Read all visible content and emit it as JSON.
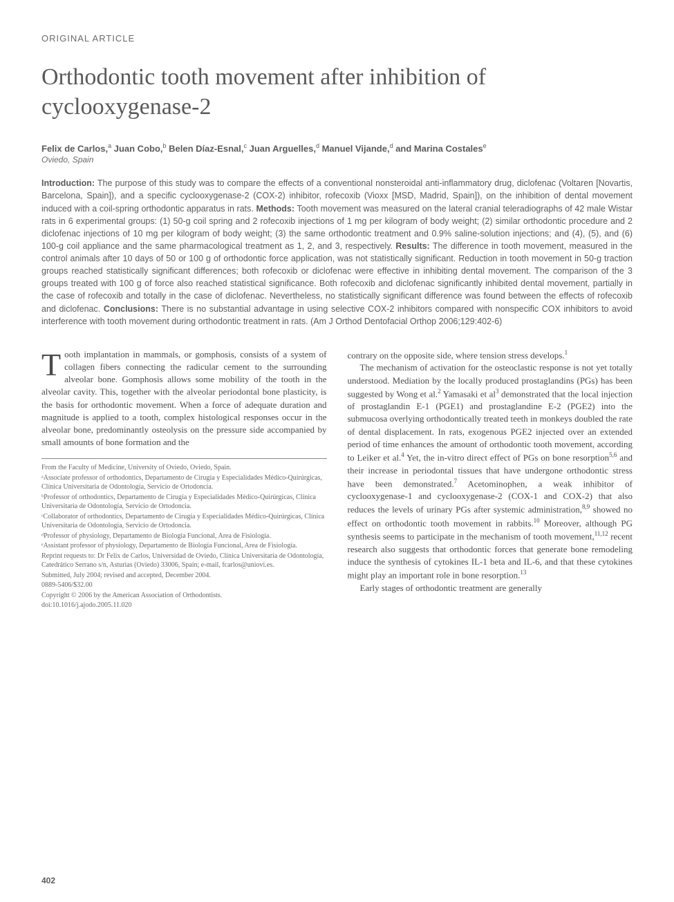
{
  "section_label": "ORIGINAL ARTICLE",
  "title": "Orthodontic tooth movement after inhibition of cyclooxygenase-2",
  "authors_html": "Felix de Carlos,<sup>a</sup> Juan Cobo,<sup>b</sup> Belen Díaz-Esnal,<sup>c</sup> Juan Arguelles,<sup>d</sup> Manuel Vijande,<sup>d</sup> and Marina Costales<sup>e</sup>",
  "location": "Oviedo, Spain",
  "abstract": {
    "intro_label": "Introduction:",
    "intro": " The purpose of this study was to compare the effects of a conventional nonsteroidal anti-inflammatory drug, diclofenac (Voltaren [Novartis, Barcelona, Spain]), and a specific cyclooxygenase-2 (COX-2) inhibitor, rofecoxib (Vioxx [MSD, Madrid, Spain]), on the inhibition of dental movement induced with a coil-spring orthodontic apparatus in rats. ",
    "methods_label": "Methods:",
    "methods": " Tooth movement was measured on the lateral cranial teleradiographs of 42 male Wistar rats in 6 experimental groups: (1) 50-g coil spring and 2 rofecoxib injections of 1 mg per kilogram of body weight; (2) similar orthodontic procedure and 2 diclofenac injections of 10 mg per kilogram of body weight; (3) the same orthodontic treatment and 0.9% saline-solution injections; and (4), (5), and (6) 100-g coil appliance and the same pharmacological treatment as 1, 2, and 3, respectively. ",
    "results_label": "Results:",
    "results": " The difference in tooth movement, measured in the control animals after 10 days of 50 or 100 g of orthodontic force application, was not statistically significant. Reduction in tooth movement in 50-g traction groups reached statistically significant differences; both rofecoxib or diclofenac were effective in inhibiting dental movement. The comparison of the 3 groups treated with 100 g of force also reached statistical significance. Both rofecoxib and diclofenac significantly inhibited dental movement, partially in the case of rofecoxib and totally in the case of diclofenac. Nevertheless, no statistically significant difference was found between the effects of rofecoxib and diclofenac. ",
    "conclusions_label": "Conclusions:",
    "conclusions": " There is no substantial advantage in using selective COX-2 inhibitors compared with nonspecific COX inhibitors to avoid interference with tooth movement during orthodontic treatment in rats. (Am J Orthod Dentofacial Orthop 2006;129:402-6)"
  },
  "body": {
    "col1_p1": "ooth implantation in mammals, or gomphosis, consists of a system of collagen fibers connecting the radicular cement to the surrounding alveolar bone. Gomphosis allows some mobility of the tooth in the alveolar cavity. This, together with the alveolar periodontal bone plasticity, is the basis for orthodontic movement. When a force of adequate duration and magnitude is applied to a tooth, complex histological responses occur in the alveolar bone, predominantly osteolysis on the pressure side accompanied by small amounts of bone formation and the",
    "col2_p1": "contrary on the opposite side, where tension stress develops.",
    "col2_p2_a": "The mechanism of activation for the osteoclastic response is not yet totally understood. Mediation by the locally produced prostaglandins (PGs) has been suggested by Wong et al.",
    "col2_p2_b": " Yamasaki et al",
    "col2_p2_c": " demonstrated that the local injection of prostaglandin E-1 (PGE1) and prostaglandine E-2 (PGE2) into the submucosa overlying orthodontically treated teeth in monkeys doubled the rate of dental displacement. In rats, exogenous PGE2 injected over an extended period of time enhances the amount of orthodontic tooth movement, according to Leiker et al.",
    "col2_p2_d": " Yet, the in-vitro direct effect of PGs on bone resorption",
    "col2_p2_e": " and their increase in periodontal tissues that have undergone orthodontic stress have been demonstrated.",
    "col2_p2_f": " Acetominophen, a weak inhibitor of cyclooxygenase-1 and cyclooxygenase-2 (COX-1 and COX-2) that also reduces the levels of urinary PGs after systemic administration,",
    "col2_p2_g": " showed no effect on orthodontic tooth movement in rabbits.",
    "col2_p2_h": " Moreover, although PG synthesis seems to participate in the mechanism of tooth movement,",
    "col2_p2_i": " recent research also suggests that orthodontic forces that generate bone remodeling induce the synthesis of cytokines IL-1 beta and IL-6, and that these cytokines might play an important role in bone resorption.",
    "col2_p3": "Early stages of orthodontic treatment are generally"
  },
  "refs": {
    "r1": "1",
    "r2": "2",
    "r3": "3",
    "r4": "4",
    "r56": "5,6",
    "r7": "7",
    "r89": "8,9",
    "r10": "10",
    "r1112": "11,12",
    "r13": "13"
  },
  "footnotes": {
    "ln1": "From the Faculty of Medicine, University of Oviedo, Oviedo, Spain.",
    "ln2": "ᵃAssociate professor of orthodontics, Departamento de Cirugía y Especialidades Médico-Quirúrgicas, Clínica Universitaria de Odontología, Servicio de Ortodoncia.",
    "ln3": "ᵇProfessor of orthodontics, Departamento de Cirugía y Especialidades Médico-Quirúrgicas, Clínica Universitaria de Odontología, Servicio de Ortodoncia.",
    "ln4": "ᶜCollaborator of orthodontics, Departamento de Cirugía y Especialidades Médico-Quirúrgicas, Clínica Universitaria de Odontología, Servicio de Ortodoncia.",
    "ln5": "ᵈProfessor of physiology, Departamento de Biología Funcional, Area de Fisiología.",
    "ln6": "ᵉAssistant professor of physiology, Departamento de Biología Funcional, Area de Fisiología.",
    "ln7": "Reprint requests to: Dr Felix de Carlos, Universidad de Oviedo, Clínica Universitaria de Odontología, Catedrático Serrano s/n, Asturias (Oviedo) 33006, Spain; e-mail, fcarlos@uniovi.es.",
    "ln8": "Submitted, July 2004; revised and accepted, December 2004.",
    "ln9": "0889-5406/$32.00",
    "ln10": "Copyright © 2006 by the American Association of Orthodontists.",
    "ln11": "doi:10.1016/j.ajodo.2005.11.020"
  },
  "page_number": "402",
  "style": {
    "body_bg": "#ffffff",
    "text_color": "#4a4a4a",
    "muted_color": "#6a6a6a",
    "title_fontsize": 34,
    "abstract_fontsize": 12.5,
    "body_fontsize": 13,
    "footnote_fontsize": 10,
    "dropcap_fontsize": 46,
    "column_gap": 30
  }
}
